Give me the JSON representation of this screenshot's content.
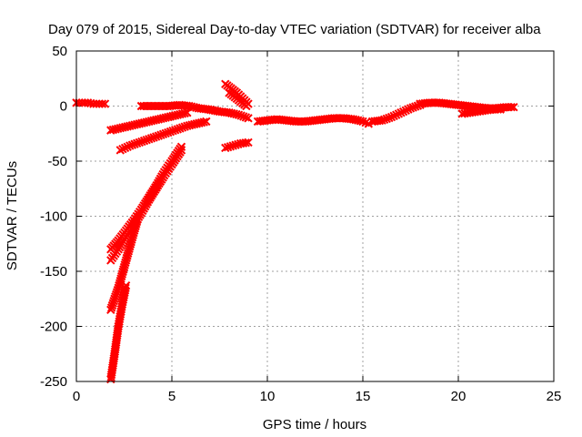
{
  "chart_data": {
    "type": "scatter",
    "title": "Day 079 of 2015, Sidereal Day-to-day VTEC variation (SDTVAR) for receiver alba",
    "xlabel": "GPS time / hours",
    "ylabel": "SDTVAR / TECUs",
    "xlim": [
      0,
      25
    ],
    "ylim": [
      -250,
      50
    ],
    "x_ticks": [
      0,
      5,
      10,
      15,
      20,
      25
    ],
    "y_ticks": [
      -250,
      -200,
      -150,
      -100,
      -50,
      0,
      50
    ],
    "x_tick_labels": [
      "0",
      "5",
      "10",
      "15",
      "20",
      "25"
    ],
    "y_tick_labels": [
      "-250",
      "-200",
      "-150",
      "-100",
      "-50",
      "0",
      "50"
    ],
    "grid": true,
    "marker": "cross",
    "color": "#ff0000",
    "series": [
      {
        "points": [
          [
            0.0,
            3
          ],
          [
            0.3,
            3
          ],
          [
            0.6,
            3
          ],
          [
            0.9,
            2
          ],
          [
            1.2,
            2
          ],
          [
            1.5,
            2
          ]
        ]
      },
      {
        "points": [
          [
            3.4,
            0
          ],
          [
            3.9,
            0
          ],
          [
            4.4,
            0
          ],
          [
            4.9,
            0
          ],
          [
            5.4,
            1
          ],
          [
            5.9,
            0
          ],
          [
            6.4,
            -2
          ],
          [
            6.9,
            -3
          ],
          [
            7.5,
            -5
          ],
          [
            8.0,
            -6
          ],
          [
            8.5,
            -8
          ],
          [
            9.0,
            -11
          ]
        ]
      },
      {
        "points": [
          [
            1.8,
            -22
          ],
          [
            2.3,
            -20
          ],
          [
            2.8,
            -18
          ],
          [
            3.3,
            -16
          ],
          [
            3.8,
            -14
          ],
          [
            4.3,
            -12
          ],
          [
            4.8,
            -10
          ],
          [
            5.3,
            -8
          ],
          [
            5.8,
            -6
          ]
        ]
      },
      {
        "points": [
          [
            2.3,
            -40
          ],
          [
            2.8,
            -36
          ],
          [
            3.3,
            -33
          ],
          [
            3.8,
            -30
          ],
          [
            4.3,
            -27
          ],
          [
            4.8,
            -24
          ],
          [
            5.3,
            -21
          ],
          [
            5.8,
            -18
          ],
          [
            6.3,
            -16
          ],
          [
            6.8,
            -14
          ]
        ]
      },
      {
        "points": [
          [
            7.8,
            -38
          ],
          [
            8.2,
            -36
          ],
          [
            8.6,
            -34
          ],
          [
            9.0,
            -33
          ]
        ]
      },
      {
        "points": [
          [
            7.8,
            20
          ],
          [
            8.1,
            16
          ],
          [
            8.4,
            12
          ],
          [
            8.7,
            7
          ],
          [
            9.0,
            2
          ]
        ]
      },
      {
        "points": [
          [
            8.0,
            12
          ],
          [
            8.3,
            8
          ],
          [
            8.6,
            4
          ],
          [
            8.9,
            0
          ]
        ]
      },
      {
        "points": [
          [
            9.5,
            -14
          ],
          [
            10.0,
            -13
          ],
          [
            10.5,
            -12
          ],
          [
            11.0,
            -13
          ],
          [
            11.5,
            -14
          ],
          [
            12.0,
            -14
          ],
          [
            12.5,
            -13
          ],
          [
            13.0,
            -12
          ],
          [
            13.5,
            -11
          ],
          [
            14.0,
            -11
          ],
          [
            14.5,
            -12
          ],
          [
            15.0,
            -14
          ],
          [
            15.3,
            -16
          ]
        ]
      },
      {
        "points": [
          [
            15.5,
            -14
          ],
          [
            16.0,
            -13
          ],
          [
            16.5,
            -10
          ],
          [
            17.0,
            -6
          ],
          [
            17.5,
            -2
          ],
          [
            18.0,
            1
          ]
        ]
      },
      {
        "points": [
          [
            18.0,
            2
          ],
          [
            18.5,
            3
          ],
          [
            19.0,
            3
          ],
          [
            19.5,
            2
          ],
          [
            20.0,
            1
          ],
          [
            20.5,
            0
          ],
          [
            21.0,
            -1
          ],
          [
            21.5,
            -2
          ],
          [
            22.0,
            -2
          ],
          [
            22.5,
            -1
          ],
          [
            22.9,
            -1
          ]
        ]
      },
      {
        "points": [
          [
            20.2,
            -7
          ],
          [
            20.6,
            -6
          ],
          [
            21.0,
            -5
          ],
          [
            21.4,
            -4
          ],
          [
            21.8,
            -3
          ],
          [
            22.2,
            -3
          ]
        ]
      },
      {
        "points": [
          [
            1.8,
            -130
          ],
          [
            2.2,
            -122
          ],
          [
            2.6,
            -113
          ],
          [
            3.0,
            -104
          ],
          [
            3.4,
            -94
          ],
          [
            3.8,
            -83
          ],
          [
            4.2,
            -72
          ],
          [
            4.6,
            -60
          ],
          [
            5.0,
            -50
          ],
          [
            5.5,
            -37
          ]
        ]
      },
      {
        "points": [
          [
            1.8,
            -140
          ],
          [
            2.2,
            -130
          ],
          [
            2.6,
            -119
          ],
          [
            3.0,
            -108
          ],
          [
            3.4,
            -97
          ],
          [
            3.8,
            -85
          ],
          [
            4.2,
            -74
          ],
          [
            4.6,
            -63
          ],
          [
            5.0,
            -53
          ],
          [
            5.5,
            -40
          ]
        ]
      },
      {
        "points": [
          [
            1.8,
            -185
          ],
          [
            2.2,
            -165
          ],
          [
            2.6,
            -140
          ],
          [
            3.0,
            -115
          ],
          [
            3.2,
            -103
          ]
        ]
      },
      {
        "points": [
          [
            1.8,
            -248
          ],
          [
            2.0,
            -225
          ],
          [
            2.2,
            -200
          ],
          [
            2.4,
            -180
          ],
          [
            2.6,
            -163
          ]
        ]
      }
    ]
  }
}
